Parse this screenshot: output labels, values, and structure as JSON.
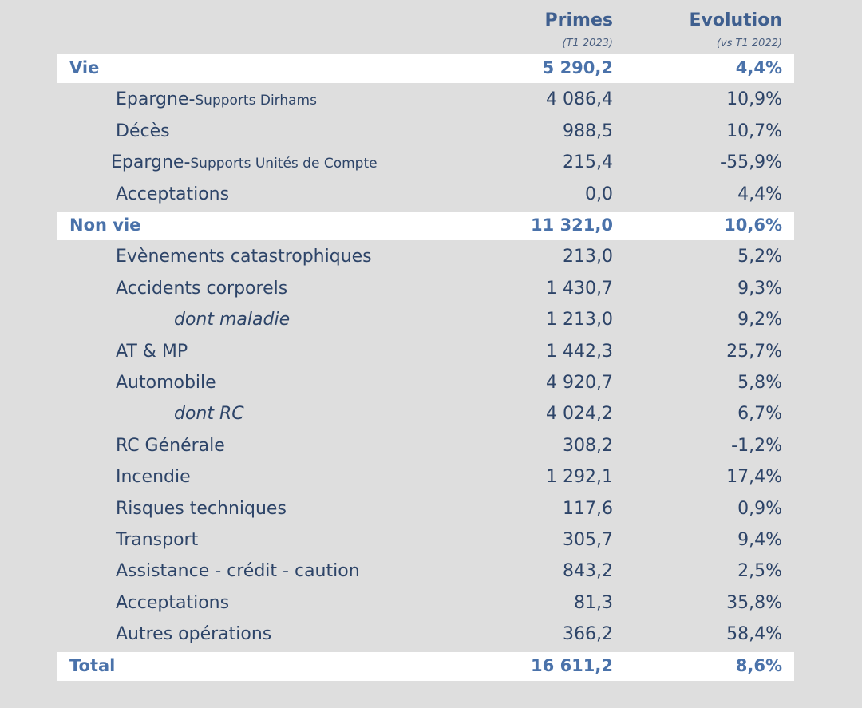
{
  "header": {
    "columns": [
      {
        "title": "Primes",
        "subtitle": "(T1 2023)"
      },
      {
        "title": "Evolution",
        "subtitle": "(vs T1 2022)"
      }
    ]
  },
  "table": {
    "rows": [
      {
        "kind": "section",
        "label": "Vie",
        "primes": "5 290,2",
        "evolution": "4,4%"
      },
      {
        "kind": "item",
        "label": "Epargne-",
        "label_suffix": "Supports Dirhams",
        "primes": "4 086,4",
        "evolution": "10,9%"
      },
      {
        "kind": "item",
        "label": "Décès",
        "primes": "988,5",
        "evolution": "10,7%"
      },
      {
        "kind": "item-tight",
        "label": "Epargne-",
        "label_suffix": "Supports Unités de Compte",
        "primes": "215,4",
        "evolution": "-55,9%"
      },
      {
        "kind": "item",
        "label": "Acceptations",
        "primes": "0,0",
        "evolution": "4,4%"
      },
      {
        "kind": "section",
        "label": "Non vie",
        "primes": "11 321,0",
        "evolution": "10,6%"
      },
      {
        "kind": "item",
        "label": "Evènements catastrophiques",
        "primes": "213,0",
        "evolution": "5,2%"
      },
      {
        "kind": "item",
        "label": "Accidents corporels",
        "primes": "1 430,7",
        "evolution": "9,3%"
      },
      {
        "kind": "sub",
        "label": "dont maladie",
        "primes": "1 213,0",
        "evolution": "9,2%"
      },
      {
        "kind": "item",
        "label": "AT & MP",
        "primes": "1 442,3",
        "evolution": "25,7%"
      },
      {
        "kind": "item",
        "label": "Automobile",
        "primes": "4 920,7",
        "evolution": "5,8%"
      },
      {
        "kind": "sub",
        "label": "dont RC",
        "primes": "4 024,2",
        "evolution": "6,7%"
      },
      {
        "kind": "item",
        "label": "RC Générale",
        "primes": "308,2",
        "evolution": "-1,2%"
      },
      {
        "kind": "item",
        "label": "Incendie",
        "primes": "1 292,1",
        "evolution": "17,4%"
      },
      {
        "kind": "item",
        "label": "Risques techniques",
        "primes": "117,6",
        "evolution": "0,9%"
      },
      {
        "kind": "item",
        "label": "Transport",
        "primes": "305,7",
        "evolution": "9,4%"
      },
      {
        "kind": "item",
        "label": "Assistance - crédit - caution",
        "primes": "843,2",
        "evolution": "2,5%"
      },
      {
        "kind": "item",
        "label": "Acceptations",
        "primes": "81,3",
        "evolution": "35,8%"
      },
      {
        "kind": "item",
        "label": "Autres opérations",
        "primes": "366,2",
        "evolution": "58,4%"
      },
      {
        "kind": "section",
        "label": "Total",
        "primes": "16 611,2",
        "evolution": "8,6%"
      }
    ]
  }
}
